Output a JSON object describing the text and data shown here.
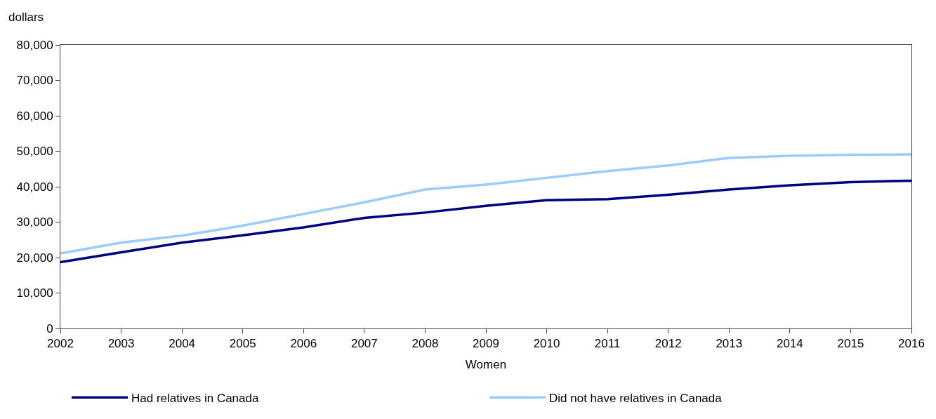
{
  "chart_data": {
    "type": "line",
    "ylabel": "dollars",
    "xlabel": "Women",
    "x": [
      2002,
      2003,
      2004,
      2005,
      2006,
      2007,
      2008,
      2009,
      2010,
      2011,
      2012,
      2013,
      2014,
      2015,
      2016
    ],
    "series": [
      {
        "name": "Had relatives in Canada",
        "color": "#000080",
        "values": [
          18700,
          21500,
          24200,
          26300,
          28500,
          31200,
          32700,
          34600,
          36200,
          36500,
          37700,
          39200,
          40400,
          41300,
          41700
        ]
      },
      {
        "name": "Did not have relatives in Canada",
        "color": "#99ccff",
        "values": [
          21200,
          24200,
          26200,
          29000,
          32300,
          35600,
          39200,
          40600,
          42500,
          44400,
          46000,
          48100,
          48700,
          49000,
          49100
        ]
      }
    ],
    "xlim": [
      2002,
      2016
    ],
    "xticks": [
      2002,
      2003,
      2004,
      2005,
      2006,
      2007,
      2008,
      2009,
      2010,
      2011,
      2012,
      2013,
      2014,
      2015,
      2016
    ],
    "ylim": [
      0,
      80000
    ],
    "yticks": [
      {
        "value": 0,
        "label": "0"
      },
      {
        "value": 10000,
        "label": "10,000"
      },
      {
        "value": 20000,
        "label": "20,000"
      },
      {
        "value": 30000,
        "label": "30,000"
      },
      {
        "value": 40000,
        "label": "40,000"
      },
      {
        "value": 50000,
        "label": "50,000"
      },
      {
        "value": 60000,
        "label": "60,000"
      },
      {
        "value": 70000,
        "label": "70,000"
      },
      {
        "value": 80000,
        "label": "80,000"
      }
    ],
    "legend": "bottom",
    "marker": "none",
    "line_style": "solid"
  }
}
